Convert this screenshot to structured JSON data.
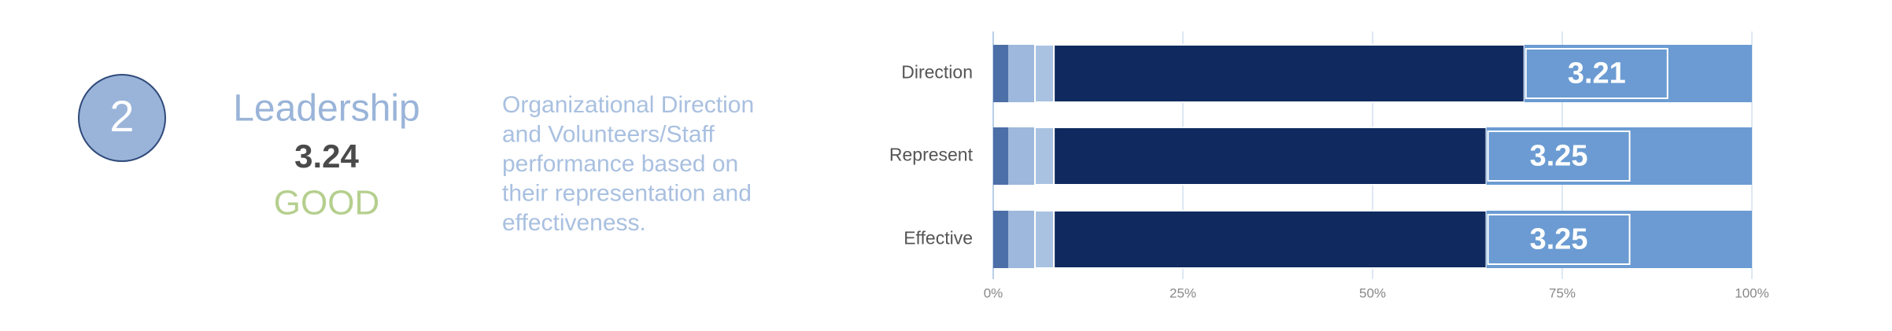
{
  "summary": {
    "number": "2",
    "title": "Leadership",
    "score": "3.24",
    "rating": "GOOD",
    "description": [
      "Organizational Direction",
      "and Volunteers/Staff",
      "performance based on",
      "their representation and",
      "effectiveness."
    ]
  },
  "chart_data": {
    "type": "stacked-bar-horizontal",
    "categories": [
      "Direction",
      "Represent",
      "Effective"
    ],
    "series": [
      {
        "color": "#4d6fa8",
        "values": [
          2,
          2,
          2
        ]
      },
      {
        "color": "#9db8dc",
        "values": [
          3.5,
          3.5,
          3.5
        ]
      },
      {
        "color": "#a9c2e2",
        "values": [
          2.5,
          2.5,
          2.5
        ]
      },
      {
        "color": "#102a5f",
        "values": [
          62,
          57,
          57
        ]
      },
      {
        "color": "#6b9bd2",
        "values": [
          30,
          35,
          35
        ]
      }
    ],
    "scores": [
      "3.21",
      "3.25",
      "3.25"
    ],
    "xlim": [
      0,
      100
    ],
    "xticks": [
      {
        "value": 0,
        "label": "0%"
      },
      {
        "value": 25,
        "label": "25%"
      },
      {
        "value": 50,
        "label": "50%"
      },
      {
        "value": 75,
        "label": "75%"
      },
      {
        "value": 100,
        "label": "100%"
      }
    ],
    "grid": true
  }
}
